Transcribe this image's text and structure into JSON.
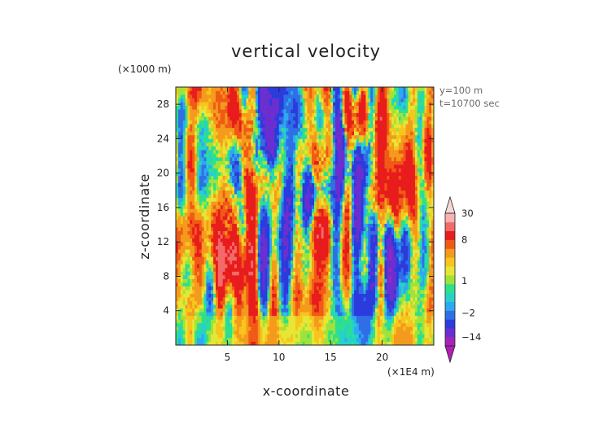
{
  "chart_data": {
    "type": "heatmap",
    "title": "vertical velocity",
    "xlabel": "x-coordinate",
    "ylabel": "z-coordinate",
    "x_unit": "(×1E4 m)",
    "y_unit": "(×1000 m)",
    "xlim": [
      0,
      25
    ],
    "ylim": [
      0,
      30
    ],
    "x_ticks": [
      5,
      10,
      15,
      20
    ],
    "y_ticks": [
      4,
      8,
      12,
      16,
      20,
      24,
      28
    ],
    "info": [
      "y=100 m",
      "t=10700 sec"
    ],
    "colorbar": {
      "tick_values": [
        30,
        8,
        1,
        -2,
        -14
      ],
      "tick_labels": [
        "30",
        "8",
        "1",
        "−2",
        "−14"
      ],
      "over_color": "#f7d8d8",
      "under_color": "#b21eb0",
      "levels": [
        {
          "min": -30,
          "max": -14,
          "color": "#a424b8"
        },
        {
          "min": -14,
          "max": -8,
          "color": "#6b2fd0"
        },
        {
          "min": -8,
          "max": -4,
          "color": "#2b3bdc"
        },
        {
          "min": -4,
          "max": -2,
          "color": "#2f6fe6"
        },
        {
          "min": -2,
          "max": -1,
          "color": "#2ea8f0"
        },
        {
          "min": -1,
          "max": 0,
          "color": "#25d2c8"
        },
        {
          "min": 0,
          "max": 1,
          "color": "#2ee08a"
        },
        {
          "min": 1,
          "max": 2,
          "color": "#9fe33a"
        },
        {
          "min": 2,
          "max": 3,
          "color": "#e6e636"
        },
        {
          "min": 3,
          "max": 4,
          "color": "#f7c51e"
        },
        {
          "min": 4,
          "max": 6,
          "color": "#f49a1c"
        },
        {
          "min": 6,
          "max": 8,
          "color": "#f05a16"
        },
        {
          "min": 8,
          "max": 14,
          "color": "#e81c1c"
        },
        {
          "min": 14,
          "max": 20,
          "color": "#f26a6a"
        },
        {
          "min": 20,
          "max": 30,
          "color": "#f7b2b2"
        }
      ]
    },
    "field_seed": 7
  }
}
